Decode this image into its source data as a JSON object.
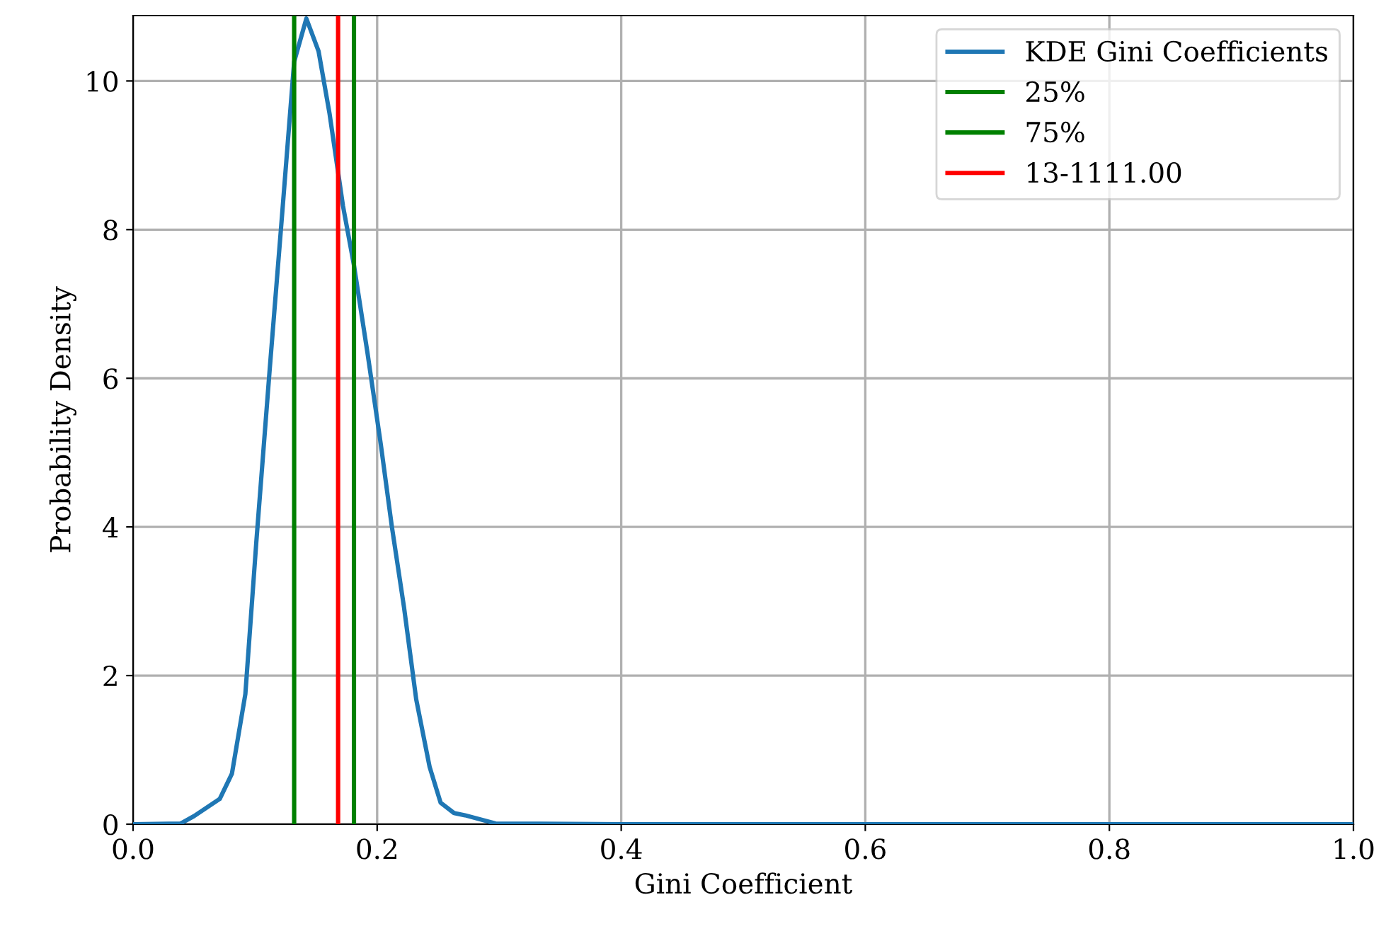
{
  "chart_data": {
    "type": "line",
    "xlabel": "Gini Coefficient",
    "ylabel": "Probability Density",
    "xlim": [
      0,
      1.0
    ],
    "xticks": [
      {
        "value": 0,
        "label": "0.0"
      },
      {
        "value": 0.2,
        "label": "0.2"
      },
      {
        "value": 0.4,
        "label": "0.4"
      },
      {
        "value": 0.6,
        "label": "0.6"
      },
      {
        "value": 0.8,
        "label": "0.8"
      },
      {
        "value": 1.0,
        "label": "1.0"
      }
    ],
    "ylim": [
      0,
      10.88
    ],
    "yticks": [
      0,
      2,
      4,
      6,
      8,
      10
    ],
    "grid": true,
    "legend": "top right",
    "marker": "none",
    "line_style": "solid",
    "series": [
      {
        "name": "KDE Gini Coefficients",
        "color": "#1f77b4",
        "x": [
          0,
          0.039,
          0.05,
          0.071,
          0.081,
          0.092,
          0.101,
          0.112,
          0.122,
          0.132,
          0.142,
          0.152,
          0.161,
          0.172,
          0.181,
          0.192,
          0.203,
          0.212,
          0.222,
          0.232,
          0.243,
          0.252,
          0.263,
          0.272,
          0.297,
          0.4,
          0.6,
          0.8,
          1.0
        ],
        "values": [
          0,
          0.01,
          0.11,
          0.34,
          0.68,
          1.75,
          3.8,
          6.13,
          8.18,
          10.26,
          10.84,
          10.4,
          9.56,
          8.32,
          7.52,
          6.35,
          5.11,
          4.01,
          2.92,
          1.68,
          0.77,
          0.29,
          0.15,
          0.12,
          0.01,
          0,
          0,
          0,
          0
        ]
      },
      {
        "name": "25%",
        "color": "#008000",
        "x": [
          0.132,
          0.132
        ],
        "values": [
          0,
          10.88
        ]
      },
      {
        "name": "75%",
        "color": "#008000",
        "x": [
          0.181,
          0.181
        ],
        "values": [
          0,
          10.88
        ]
      },
      {
        "name": "13-1111.00",
        "color": "#ff0000",
        "x": [
          0.168,
          0.168
        ],
        "values": [
          0,
          10.88
        ]
      }
    ]
  }
}
